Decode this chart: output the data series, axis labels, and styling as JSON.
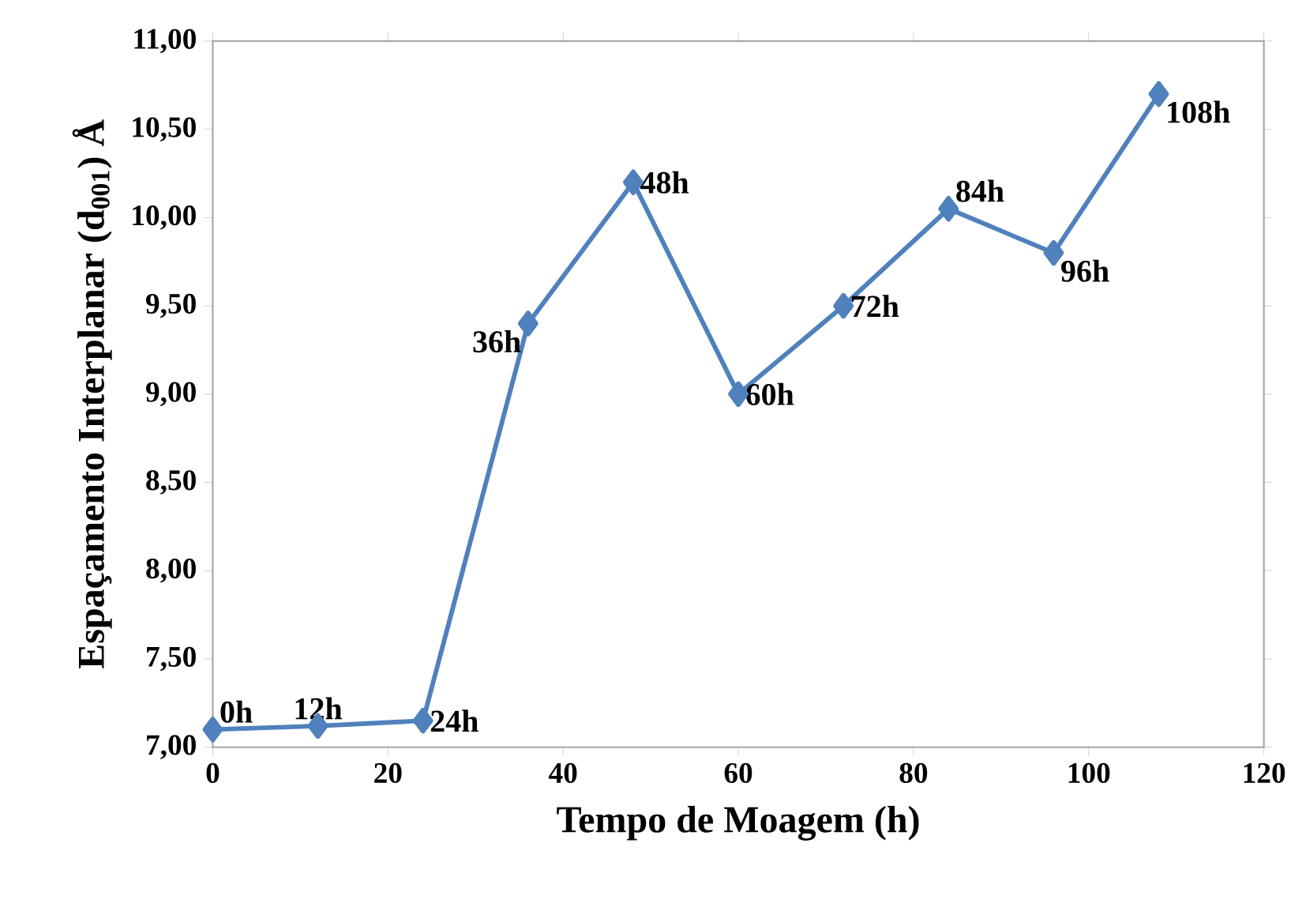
{
  "chart_data": {
    "type": "line",
    "xlabel": "Tempo de Moagem (h)",
    "ylabel": "Espaçamento Interplanar  (d$_{001}$) Å",
    "x": [
      0,
      12,
      24,
      36,
      48,
      60,
      72,
      84,
      96,
      108
    ],
    "series": [
      {
        "color": "#4f81bd",
        "values": [
          7.1,
          7.12,
          7.15,
          9.4,
          10.2,
          9.0,
          9.5,
          10.05,
          9.8,
          10.7
        ]
      }
    ],
    "xlim": [
      0,
      120
    ],
    "xticks": [
      0,
      20,
      40,
      60,
      80,
      100,
      120
    ],
    "ylim": [
      7,
      11
    ],
    "yticks": [
      {
        "value": 7,
        "label": "7,00"
      },
      {
        "value": 7.5,
        "label": "7,50"
      },
      {
        "value": 8,
        "label": "8,00"
      },
      {
        "value": 8.5,
        "label": "8,50"
      },
      {
        "value": 9,
        "label": "9,00"
      },
      {
        "value": 9.5,
        "label": "9,50"
      },
      {
        "value": 10,
        "label": "10,00"
      },
      {
        "value": 10.5,
        "label": "10,50"
      },
      {
        "value": 11,
        "label": "11,00"
      }
    ],
    "grid": false,
    "marker": "diamond",
    "line_style": "solid",
    "annotations": [
      {
        "text": "0h",
        "x": 0,
        "y": 7.1
      },
      {
        "text": "12h",
        "x": 12,
        "y": 7.12
      },
      {
        "text": "24h",
        "x": 24,
        "y": 7.15
      },
      {
        "text": "36h",
        "x": 36,
        "y": 9.4
      },
      {
        "text": "48h",
        "x": 48,
        "y": 10.2
      },
      {
        "text": "60h",
        "x": 60,
        "y": 9.0
      },
      {
        "text": "72h",
        "x": 72,
        "y": 9.5
      },
      {
        "text": "84h",
        "x": 84,
        "y": 10.05
      },
      {
        "text": "96h",
        "x": 96,
        "y": 9.8
      },
      {
        "text": "108h",
        "x": 108,
        "y": 10.7
      }
    ]
  }
}
